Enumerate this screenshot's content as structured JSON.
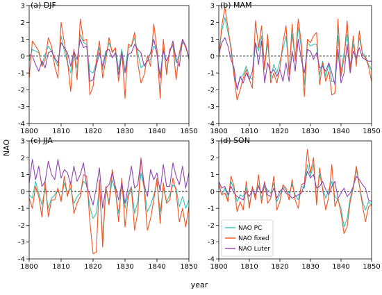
{
  "figure": {
    "xlabel": "year",
    "ylabel": "NAO"
  },
  "colors": {
    "NAO PC": "#2ec4b6",
    "NAO fixed": "#f4511e",
    "NAO Luter": "#8e44ad",
    "zero_line": "#000000"
  },
  "chart_data": [
    {
      "panel": "(a) DJF",
      "type": "line",
      "title": "(a) DJF",
      "xlim": [
        1800,
        1850
      ],
      "ylim": [
        -4,
        3
      ],
      "xticks": [
        1800,
        1810,
        1820,
        1830,
        1840,
        1850
      ],
      "yticks": [
        -4,
        -3,
        -2,
        -1,
        0,
        1,
        2,
        3
      ],
      "x": [
        1800,
        1801,
        1802,
        1803,
        1804,
        1805,
        1806,
        1807,
        1808,
        1809,
        1810,
        1811,
        1812,
        1813,
        1814,
        1815,
        1816,
        1817,
        1818,
        1819,
        1820,
        1821,
        1822,
        1823,
        1824,
        1825,
        1826,
        1827,
        1828,
        1829,
        1830,
        1831,
        1832,
        1833,
        1834,
        1835,
        1836,
        1837,
        1838,
        1839,
        1840,
        1841,
        1842,
        1843,
        1844,
        1845,
        1846,
        1847,
        1848,
        1849,
        1850
      ],
      "series": [
        {
          "name": "NAO PC",
          "values": [
            -0.3,
            0.4,
            0.3,
            0.2,
            -0.5,
            0.1,
            0.6,
            0.3,
            -0.2,
            -0.6,
            1.2,
            0.3,
            -0.4,
            -1.0,
            0.3,
            -0.7,
            1.3,
            0.8,
            0.7,
            -0.9,
            -1.0,
            -0.4,
            0.5,
            -0.8,
            0.1,
            0.8,
            0.3,
            0.4,
            -0.8,
            0.4,
            -0.9,
            0.5,
            0.6,
            1.1,
            0.2,
            -0.7,
            -0.5,
            -0.3,
            -0.2,
            0.6,
            0.3,
            -1.2,
            0.5,
            -0.9,
            0.4,
            0.6,
            -0.4,
            0.1,
            0.8,
            0.6,
            -0.2
          ]
        },
        {
          "name": "NAO fixed",
          "values": [
            -1.3,
            0.9,
            0.6,
            0.3,
            -0.6,
            -0.2,
            1.1,
            0.6,
            -0.6,
            -1.3,
            2.0,
            0.8,
            -0.3,
            -2.1,
            0.4,
            -1.4,
            2.2,
            0.9,
            1.0,
            -2.3,
            -1.8,
            -0.3,
            0.9,
            -1.3,
            -0.2,
            1.1,
            0.2,
            0.5,
            -1.5,
            0.3,
            -2.5,
            0.7,
            0.6,
            1.4,
            -0.4,
            -1.6,
            -1.1,
            0.0,
            -0.6,
            1.9,
            0.4,
            -2.5,
            1.0,
            -1.1,
            0.4,
            0.7,
            -1.4,
            0.2,
            1.0,
            0.5,
            -0.1
          ]
        },
        {
          "name": "NAO Luter",
          "values": [
            0.1,
            0.0,
            -0.5,
            -0.9,
            -0.3,
            -0.7,
            0.2,
            0.3,
            -0.1,
            -0.4,
            0.8,
            0.5,
            0.2,
            -0.6,
            0.3,
            -0.2,
            1.0,
            0.5,
            0.6,
            -1.5,
            -1.4,
            -0.6,
            0.2,
            -0.6,
            0.3,
            0.4,
            -0.1,
            0.2,
            -1.1,
            0.2,
            -1.0,
            0.1,
            0.2,
            0.7,
            0.4,
            0.2,
            -0.6,
            -0.3,
            0.2,
            1.0,
            0.1,
            -1.3,
            0.3,
            -0.3,
            0.2,
            0.9,
            -0.2,
            -0.6,
            1.0,
            0.6,
            -0.1
          ]
        }
      ]
    },
    {
      "panel": "(b) MAM",
      "type": "line",
      "title": "(b) MAM",
      "xlim": [
        1800,
        1850
      ],
      "ylim": [
        -4,
        3
      ],
      "xticks": [
        1800,
        1810,
        1820,
        1830,
        1840,
        1850
      ],
      "yticks": [
        -4,
        -3,
        -2,
        -1,
        0,
        1,
        2,
        3
      ],
      "x": [
        1800,
        1801,
        1802,
        1803,
        1804,
        1805,
        1806,
        1807,
        1808,
        1809,
        1810,
        1811,
        1812,
        1813,
        1814,
        1815,
        1816,
        1817,
        1818,
        1819,
        1820,
        1821,
        1822,
        1823,
        1824,
        1825,
        1826,
        1827,
        1828,
        1829,
        1830,
        1831,
        1832,
        1833,
        1834,
        1835,
        1836,
        1837,
        1838,
        1839,
        1840,
        1841,
        1842,
        1843,
        1844,
        1845,
        1846,
        1847,
        1848,
        1849,
        1850
      ],
      "series": [
        {
          "name": "NAO PC",
          "values": [
            0.4,
            1.5,
            2.3,
            1.4,
            0.6,
            -1.0,
            -1.9,
            -1.3,
            -1.1,
            -0.6,
            -1.2,
            -1.4,
            0.8,
            0.3,
            1.2,
            -0.6,
            0.8,
            -1.3,
            -0.5,
            -1.0,
            -0.3,
            0.4,
            1.2,
            -0.9,
            1.3,
            -0.2,
            1.7,
            0.5,
            -1.7,
            0.8,
            0.6,
            0.7,
            0.7,
            -1.1,
            -0.3,
            -1.2,
            -0.5,
            -1.5,
            -1.5,
            1.2,
            -0.9,
            0.2,
            1.3,
            -0.6,
            0.7,
            -0.2,
            1.1,
            0.2,
            0.0,
            -0.5,
            -0.8
          ]
        },
        {
          "name": "NAO fixed",
          "values": [
            -0.2,
            1.8,
            2.9,
            1.7,
            0.4,
            -1.2,
            -2.6,
            -2.0,
            -1.3,
            -0.8,
            -1.4,
            -1.9,
            2.1,
            0.5,
            1.8,
            -0.8,
            1.3,
            -1.6,
            -1.0,
            -1.6,
            -0.7,
            0.8,
            1.8,
            -1.1,
            1.9,
            -0.3,
            2.2,
            0.8,
            -2.4,
            1.0,
            0.8,
            1.2,
            1.4,
            -1.7,
            -0.4,
            -1.5,
            -0.9,
            -2.3,
            -2.2,
            2.2,
            -1.2,
            -0.1,
            2.1,
            -0.8,
            1.2,
            -0.6,
            1.5,
            0.1,
            -0.1,
            -0.6,
            -1.5
          ]
        },
        {
          "name": "NAO Luter",
          "values": [
            0.1,
            0.8,
            1.1,
            0.6,
            -0.2,
            -0.7,
            -2.0,
            -1.2,
            -1.6,
            -1.0,
            -1.4,
            -0.9,
            0.8,
            -0.5,
            0.9,
            -1.6,
            -0.4,
            -1.0,
            -0.8,
            -1.2,
            -0.8,
            -1.5,
            -0.4,
            -1.5,
            0.3,
            -0.9,
            1.0,
            -0.2,
            -1.0,
            0.4,
            0.3,
            -0.2,
            0.2,
            -0.7,
            -0.6,
            -0.9,
            -0.4,
            -1.0,
            -1.7,
            0.4,
            -1.6,
            -1.0,
            0.7,
            -1.0,
            0.3,
            -0.1,
            0.5,
            -0.1,
            -0.2,
            -0.3,
            -0.3
          ]
        }
      ]
    },
    {
      "panel": "(c) JJA",
      "type": "line",
      "title": "(c) JJA",
      "xlim": [
        1800,
        1850
      ],
      "ylim": [
        -4,
        3
      ],
      "xticks": [
        1800,
        1810,
        1820,
        1830,
        1840,
        1850
      ],
      "yticks": [
        -4,
        -3,
        -2,
        -1,
        0,
        1,
        2,
        3
      ],
      "x": [
        1800,
        1801,
        1802,
        1803,
        1804,
        1805,
        1806,
        1807,
        1808,
        1809,
        1810,
        1811,
        1812,
        1813,
        1814,
        1815,
        1816,
        1817,
        1818,
        1819,
        1820,
        1821,
        1822,
        1823,
        1824,
        1825,
        1826,
        1827,
        1828,
        1829,
        1830,
        1831,
        1832,
        1833,
        1834,
        1835,
        1836,
        1837,
        1838,
        1839,
        1840,
        1841,
        1842,
        1843,
        1844,
        1845,
        1846,
        1847,
        1848,
        1849,
        1850
      ],
      "series": [
        {
          "name": "NAO PC",
          "values": [
            -0.2,
            -0.4,
            0.6,
            -0.1,
            -0.8,
            0.2,
            -1.0,
            -0.4,
            -0.2,
            0.1,
            -0.5,
            0.5,
            -0.2,
            0.2,
            -0.7,
            -0.3,
            -0.1,
            0.6,
            0.4,
            -0.9,
            -1.6,
            -1.3,
            0.2,
            -2.8,
            0.1,
            -0.6,
            0.7,
            0.0,
            -1.3,
            0.4,
            -1.0,
            -0.1,
            0.3,
            -1.3,
            -0.6,
            1.1,
            0.2,
            -1.2,
            -0.8,
            -0.2,
            0.5,
            -1.2,
            0.2,
            -0.6,
            -0.2,
            0.4,
            0.2,
            -0.9,
            -0.3,
            -1.0,
            -0.5
          ]
        },
        {
          "name": "NAO fixed",
          "values": [
            -0.4,
            -1.0,
            0.3,
            -0.3,
            -1.5,
            0.6,
            -1.5,
            -0.5,
            -0.5,
            0.2,
            -0.6,
            0.9,
            -0.3,
            0.6,
            -1.3,
            -0.7,
            -0.3,
            1.0,
            0.9,
            -1.8,
            -3.7,
            -3.6,
            0.7,
            -3.3,
            0.3,
            -0.8,
            1.3,
            0.1,
            -1.8,
            0.8,
            -2.1,
            -0.3,
            0.2,
            -2.3,
            -1.2,
            2.0,
            0.1,
            -2.3,
            -1.6,
            -0.5,
            0.8,
            -1.9,
            0.5,
            -0.7,
            -0.5,
            0.8,
            0.0,
            -1.8,
            -1.0,
            -2.1,
            -0.9
          ]
        },
        {
          "name": "NAO Luter",
          "values": [
            0.5,
            1.9,
            0.7,
            1.5,
            0.3,
            0.6,
            1.8,
            1.0,
            0.7,
            1.9,
            0.8,
            1.3,
            1.1,
            0.4,
            1.5,
            0.6,
            1.0,
            1.7,
            0.3,
            -0.2,
            -0.8,
            0.2,
            1.4,
            -1.0,
            0.2,
            0.4,
            1.1,
            0.3,
            -0.5,
            0.5,
            -0.7,
            0.3,
            1.5,
            0.2,
            0.4,
            1.9,
            0.4,
            -0.3,
            1.3,
            0.7,
            1.1,
            0.0,
            1.6,
            0.3,
            0.3,
            1.7,
            0.9,
            0.4,
            1.5,
            0.2,
            1.1
          ]
        }
      ]
    },
    {
      "panel": "(d) SON",
      "type": "line",
      "title": "(d) SON",
      "xlim": [
        1800,
        1850
      ],
      "ylim": [
        -4,
        3
      ],
      "xticks": [
        1800,
        1810,
        1820,
        1830,
        1840,
        1850
      ],
      "yticks": [
        -4,
        -3,
        -2,
        -1,
        0,
        1,
        2,
        3
      ],
      "legend": [
        "NAO PC",
        "NAO fixed",
        "NAO Luter"
      ],
      "legend_position": "lower-left",
      "x": [
        1800,
        1801,
        1802,
        1803,
        1804,
        1805,
        1806,
        1807,
        1808,
        1809,
        1810,
        1811,
        1812,
        1813,
        1814,
        1815,
        1816,
        1817,
        1818,
        1819,
        1820,
        1821,
        1822,
        1823,
        1824,
        1825,
        1826,
        1827,
        1828,
        1829,
        1830,
        1831,
        1832,
        1833,
        1834,
        1835,
        1836,
        1837,
        1838,
        1839,
        1840,
        1841,
        1842,
        1843,
        1844,
        1845,
        1846,
        1847,
        1848,
        1849,
        1850
      ],
      "series": [
        {
          "name": "NAO PC",
          "values": [
            0.4,
            -0.2,
            0.2,
            -0.5,
            0.6,
            0.1,
            -0.6,
            -0.2,
            -0.3,
            0.2,
            -0.8,
            0.1,
            -0.3,
            0.4,
            -0.4,
            0.3,
            0.1,
            -0.1,
            0.5,
            -0.6,
            -0.2,
            0.3,
            0.1,
            -0.1,
            0.4,
            -0.2,
            -0.5,
            0.3,
            0.2,
            1.6,
            0.9,
            1.6,
            -0.5,
            1.0,
            0.2,
            -0.4,
            0.1,
            0.6,
            -0.3,
            -0.5,
            -1.0,
            -2.1,
            -1.6,
            -0.4,
            0.3,
            1.3,
            0.4,
            -0.6,
            -1.1,
            -0.6,
            -0.8
          ]
        },
        {
          "name": "NAO fixed",
          "values": [
            0.5,
            -0.2,
            -0.1,
            -0.6,
            0.9,
            0.3,
            -1.2,
            -0.6,
            -1.1,
            0.6,
            -1.0,
            0.3,
            -0.5,
            1.0,
            -0.7,
            0.6,
            -0.7,
            -0.4,
            0.9,
            -1.1,
            -0.6,
            0.4,
            0.2,
            -0.5,
            0.7,
            -0.5,
            -1.0,
            0.4,
            0.5,
            2.5,
            1.1,
            2.0,
            -0.8,
            1.4,
            0.1,
            -1.1,
            -0.3,
            1.6,
            -0.9,
            -0.4,
            -1.3,
            -2.5,
            -2.1,
            -0.6,
            0.2,
            1.5,
            0.4,
            -0.8,
            -1.8,
            -0.9,
            -0.8
          ]
        },
        {
          "name": "NAO Luter",
          "values": [
            0.6,
            0.2,
            0.3,
            -0.2,
            0.3,
            -0.1,
            -0.3,
            -0.4,
            -0.5,
            0.0,
            -0.3,
            0.1,
            -0.2,
            0.3,
            -0.1,
            0.5,
            -0.2,
            -0.3,
            0.2,
            -0.4,
            0.0,
            0.2,
            -0.1,
            -0.2,
            -0.4,
            -0.3,
            -0.2,
            -0.1,
            0.4,
            1.2,
            0.8,
            1.0,
            0.2,
            0.3,
            0.6,
            0.1,
            -0.2,
            0.3,
            0.6,
            -0.4,
            -0.1,
            0.2,
            -0.3,
            -0.1,
            0.3,
            0.9,
            0.7,
            0.4,
            0.2,
            -0.5,
            -0.6
          ]
        }
      ]
    }
  ]
}
